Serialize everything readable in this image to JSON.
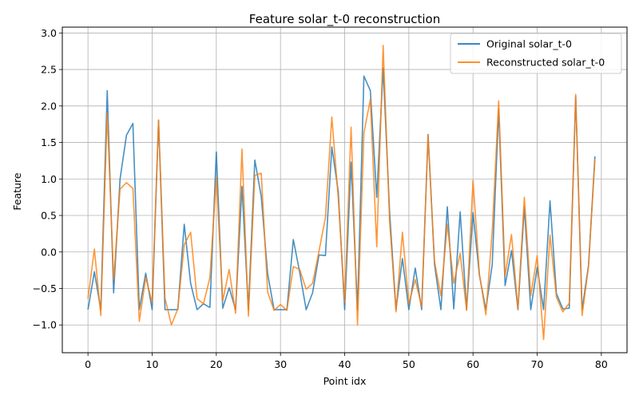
{
  "chart_data": {
    "type": "line",
    "title": "Feature solar_t-0 reconstruction",
    "xlabel": "Point idx",
    "ylabel": "Feature",
    "xlim": [
      -4,
      84
    ],
    "ylim": [
      -1.38,
      3.08
    ],
    "xticks": [
      0,
      10,
      20,
      30,
      40,
      50,
      60,
      70,
      80
    ],
    "yticks": [
      -1.0,
      -0.5,
      0.0,
      0.5,
      1.0,
      1.5,
      2.0,
      2.5,
      3.0
    ],
    "grid": true,
    "legend_position": "top-right",
    "x": [
      0,
      1,
      2,
      3,
      4,
      5,
      6,
      7,
      8,
      9,
      10,
      11,
      12,
      13,
      14,
      15,
      16,
      17,
      18,
      19,
      20,
      21,
      22,
      23,
      24,
      25,
      26,
      27,
      28,
      29,
      30,
      31,
      32,
      33,
      34,
      35,
      36,
      37,
      38,
      39,
      40,
      41,
      42,
      43,
      44,
      45,
      46,
      47,
      48,
      49,
      50,
      51,
      52,
      53,
      54,
      55,
      56,
      57,
      58,
      59,
      60,
      61,
      62,
      63,
      64,
      65,
      66,
      67,
      68,
      69,
      70,
      71,
      72,
      73,
      74,
      75,
      76,
      77,
      78,
      79
    ],
    "series": [
      {
        "name": "Original solar_t-0",
        "color": "#1f77b4",
        "values": [
          -0.79,
          -0.27,
          -0.79,
          2.21,
          -0.56,
          1.0,
          1.6,
          1.76,
          -0.79,
          -0.29,
          -0.79,
          1.8,
          -0.79,
          -0.79,
          -0.79,
          0.38,
          -0.43,
          -0.79,
          -0.71,
          -0.76,
          1.37,
          -0.77,
          -0.49,
          -0.79,
          0.9,
          -0.79,
          1.26,
          0.76,
          -0.3,
          -0.79,
          -0.79,
          -0.79,
          0.17,
          -0.28,
          -0.79,
          -0.56,
          -0.04,
          -0.05,
          1.44,
          0.83,
          -0.79,
          1.23,
          -0.79,
          2.41,
          2.21,
          0.75,
          2.52,
          0.55,
          -0.79,
          -0.09,
          -0.79,
          -0.22,
          -0.79,
          1.61,
          -0.17,
          -0.79,
          0.62,
          -0.78,
          0.55,
          -0.79,
          0.54,
          -0.32,
          -0.79,
          -0.17,
          1.95,
          -0.46,
          0.02,
          -0.79,
          0.61,
          -0.79,
          -0.21,
          -0.79,
          0.7,
          -0.57,
          -0.78,
          -0.77,
          2.13,
          -0.79,
          -0.18,
          1.31
        ]
      },
      {
        "name": "Reconstructed solar_t-0",
        "color": "#ff7f0e",
        "values": [
          -0.64,
          0.04,
          -0.87,
          1.9,
          -0.38,
          0.86,
          0.95,
          0.87,
          -0.95,
          -0.35,
          -0.69,
          1.81,
          -0.63,
          -1.0,
          -0.78,
          0.1,
          0.27,
          -0.64,
          -0.71,
          -0.35,
          1.02,
          -0.67,
          -0.24,
          -0.84,
          1.41,
          -0.88,
          1.05,
          1.08,
          -0.55,
          -0.8,
          -0.72,
          -0.8,
          -0.2,
          -0.24,
          -0.51,
          -0.43,
          0.01,
          0.47,
          1.85,
          0.74,
          -0.69,
          1.71,
          -1.0,
          1.63,
          2.09,
          0.07,
          2.83,
          0.42,
          -0.82,
          0.27,
          -0.71,
          -0.38,
          -0.75,
          1.6,
          -0.13,
          -0.6,
          0.38,
          -0.43,
          -0.02,
          -0.8,
          0.98,
          -0.3,
          -0.86,
          0.29,
          2.07,
          -0.33,
          0.24,
          -0.78,
          0.75,
          -0.6,
          -0.05,
          -1.2,
          0.23,
          -0.62,
          -0.82,
          -0.7,
          2.16,
          -0.87,
          -0.2,
          1.27
        ]
      }
    ]
  }
}
